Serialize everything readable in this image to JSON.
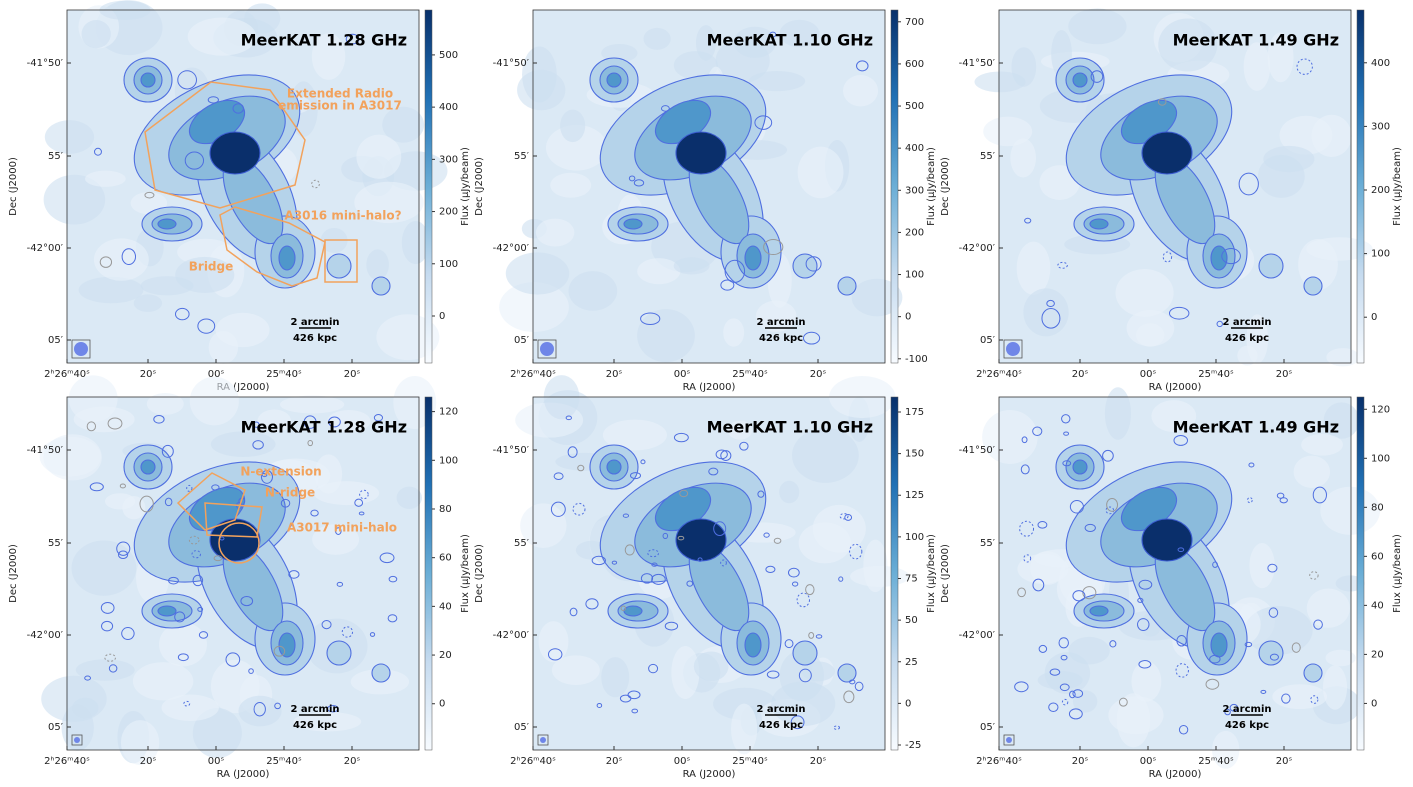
{
  "axes": {
    "x_label": "RA (J2000)",
    "y_label": "Dec (J2000)",
    "colorbar_label": "Flux (μJy/beam)",
    "x_ticks": [
      "2ʰ26ᵐ40ˢ",
      "20ˢ",
      "00ˢ",
      "25ᵐ40ˢ",
      "20ˢ"
    ],
    "y_ticks": [
      "-41°50′",
      "55′",
      "-42°00′",
      "05′"
    ],
    "scale_bar": [
      "2 arcmin",
      "426 kpc"
    ]
  },
  "panels": [
    {
      "title": "MeerKAT 1.28 GHz",
      "colorbar": {
        "range": [
          -90,
          586
        ],
        "ticks": [
          0,
          100,
          200,
          300,
          400,
          500
        ]
      },
      "annotations": [
        "Extended Radio",
        "emission in A3017",
        "A3016 mini-halo?",
        "Bridge"
      ]
    },
    {
      "title": "MeerKAT 1.10 GHz",
      "colorbar": {
        "range": [
          -110,
          728
        ],
        "ticks": [
          -100,
          0,
          100,
          200,
          300,
          400,
          500,
          600,
          700
        ]
      },
      "annotations": []
    },
    {
      "title": "MeerKAT 1.49 GHz",
      "colorbar": {
        "range": [
          -72,
          483
        ],
        "ticks": [
          0,
          100,
          200,
          300,
          400
        ]
      },
      "annotations": []
    },
    {
      "title": "MeerKAT 1.28 GHz",
      "colorbar": {
        "range": [
          -19,
          126
        ],
        "ticks": [
          0,
          20,
          40,
          60,
          80,
          100,
          120
        ]
      },
      "annotations": [
        "N-extension",
        "N-ridge",
        "A3017 mini-halo"
      ]
    },
    {
      "title": "MeerKAT 1.10 GHz",
      "colorbar": {
        "range": [
          -28,
          184
        ],
        "ticks": [
          -25,
          0,
          25,
          50,
          75,
          100,
          125,
          150,
          175
        ]
      },
      "annotations": []
    },
    {
      "title": "MeerKAT 1.49 GHz",
      "colorbar": {
        "range": [
          -19,
          125
        ],
        "ticks": [
          0,
          20,
          40,
          60,
          80,
          100,
          120
        ]
      },
      "annotations": []
    }
  ]
}
